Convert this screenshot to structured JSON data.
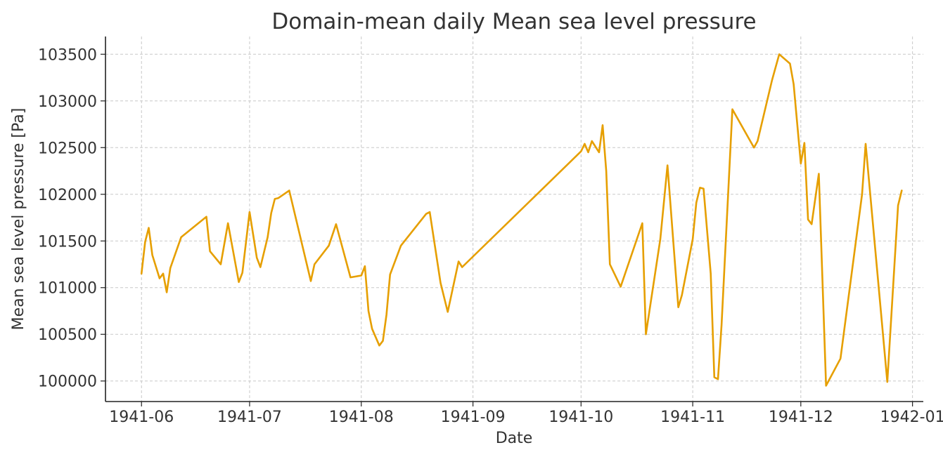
{
  "chart_data": {
    "type": "line",
    "title": "Domain-mean daily Mean sea level pressure",
    "xlabel": "Date",
    "ylabel": "Mean sea level pressure [Pa]",
    "grid": true,
    "x_is_date": true,
    "xlim": [
      "1941-05-22",
      "1942-01-04"
    ],
    "ylim": [
      99780,
      103690
    ],
    "x_ticks": [
      "1941-06-01",
      "1941-07-01",
      "1941-08-01",
      "1941-09-01",
      "1941-10-01",
      "1941-11-01",
      "1941-12-01",
      "1942-01-01"
    ],
    "x_tick_labels": [
      "1941-06",
      "1941-07",
      "1941-08",
      "1941-09",
      "1941-10",
      "1941-11",
      "1941-12",
      "1942-01"
    ],
    "y_ticks": [
      100000,
      100500,
      101000,
      101500,
      102000,
      102500,
      103000,
      103500
    ],
    "y_tick_labels": [
      "100000",
      "100500",
      "101000",
      "101500",
      "102000",
      "102500",
      "103000",
      "103500"
    ],
    "colors": {
      "series": "#e69f00",
      "axis": "#222222",
      "grid": "#c8c8c8",
      "text": "#333333"
    },
    "series": [
      {
        "x": [
          "1941-06-01",
          "1941-06-02",
          "1941-06-03",
          "1941-06-04",
          "1941-06-06",
          "1941-06-07",
          "1941-06-08",
          "1941-06-09",
          "1941-06-12",
          "1941-06-19",
          "1941-06-20",
          "1941-06-23",
          "1941-06-25",
          "1941-06-28",
          "1941-06-29",
          "1941-07-01",
          "1941-07-03",
          "1941-07-04",
          "1941-07-06",
          "1941-07-07",
          "1941-07-08",
          "1941-07-09",
          "1941-07-12",
          "1941-07-18",
          "1941-07-19",
          "1941-07-23",
          "1941-07-25",
          "1941-07-29",
          "1941-08-01",
          "1941-08-02",
          "1941-08-03",
          "1941-08-04",
          "1941-08-06",
          "1941-08-07",
          "1941-08-08",
          "1941-08-09",
          "1941-08-12",
          "1941-08-19",
          "1941-08-20",
          "1941-08-23",
          "1941-08-25",
          "1941-08-28",
          "1941-08-29",
          "1941-10-01",
          "1941-10-02",
          "1941-10-03",
          "1941-10-04",
          "1941-10-06",
          "1941-10-07",
          "1941-10-08",
          "1941-10-09",
          "1941-10-12",
          "1941-10-18",
          "1941-10-19",
          "1941-10-23",
          "1941-10-25",
          "1941-10-28",
          "1941-10-29",
          "1941-11-01",
          "1941-11-02",
          "1941-11-03",
          "1941-11-04",
          "1941-11-06",
          "1941-11-07",
          "1941-11-08",
          "1941-11-09",
          "1941-11-12",
          "1941-11-18",
          "1941-11-19",
          "1941-11-23",
          "1941-11-25",
          "1941-11-28",
          "1941-11-29",
          "1941-12-01",
          "1941-12-02",
          "1941-12-03",
          "1941-12-04",
          "1941-12-06",
          "1941-12-08",
          "1941-12-12",
          "1941-12-18",
          "1941-12-19",
          "1941-12-25",
          "1941-12-28",
          "1941-12-29"
        ],
        "y": [
          101150,
          101490,
          101640,
          101350,
          101100,
          101150,
          100950,
          101210,
          101540,
          101760,
          101390,
          101250,
          101690,
          101060,
          101160,
          101810,
          101320,
          101220,
          101540,
          101800,
          101950,
          101960,
          102040,
          101070,
          101250,
          101450,
          101680,
          101110,
          101130,
          101230,
          100750,
          100560,
          100380,
          100430,
          100710,
          101140,
          101450,
          101790,
          101810,
          101050,
          100740,
          101280,
          101220,
          102460,
          102540,
          102450,
          102570,
          102450,
          102740,
          102250,
          101250,
          101010,
          101690,
          100500,
          101520,
          102310,
          100790,
          100920,
          101520,
          101910,
          102070,
          102060,
          101150,
          100040,
          100020,
          100600,
          102910,
          102500,
          102570,
          103220,
          103500,
          103400,
          103180,
          102330,
          102550,
          101730,
          101680,
          102220,
          99950,
          100240,
          102000,
          102540,
          99990,
          101880,
          102040
        ]
      }
    ]
  }
}
